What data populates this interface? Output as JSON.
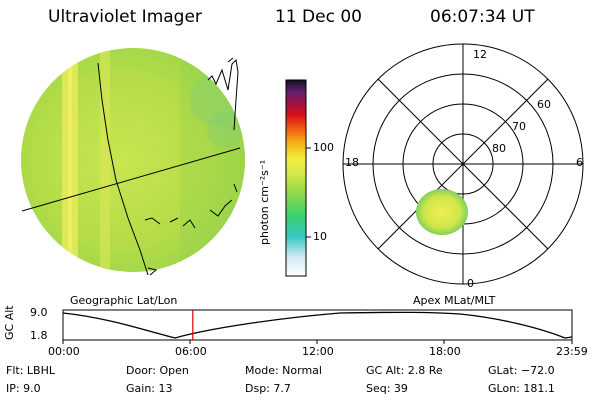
{
  "header": {
    "instrument": "Ultraviolet Imager",
    "date": "11 Dec 00",
    "time": "06:07:34 UT"
  },
  "colorbar": {
    "unit_label": "photon cm⁻²s⁻¹",
    "ticks": [
      "100",
      "10"
    ]
  },
  "left_panel": {
    "caption": "Geographic Lat/Lon"
  },
  "right_panel": {
    "caption": "Apex MLat/MLT",
    "mlt_labels": {
      "top": "12",
      "left": "18",
      "right": "6",
      "bottom": "0"
    },
    "lat_labels": [
      "60",
      "70",
      "80"
    ]
  },
  "timeline": {
    "y_label": "GC Alt",
    "y_ticks": [
      "9.0",
      "1.8"
    ],
    "x_ticks": [
      "00:00",
      "06:00",
      "12:00",
      "18:00",
      "23:59"
    ],
    "current_fraction": 0.255
  },
  "status": {
    "flt": "Flt: LBHL",
    "ip": "IP:  9.0",
    "door": "Door: Open",
    "gain": "Gain: 13",
    "mode": "Mode: Normal",
    "dsp": "Dsp:     7.7",
    "gc_alt": "GC Alt: 2.8 Re",
    "seq": "Seq: 39",
    "glat": "GLat: −72.0",
    "glon": "GLon: 181.1"
  },
  "colors": {
    "accent_line": "#e00000",
    "image_base": "#b8e04a"
  }
}
